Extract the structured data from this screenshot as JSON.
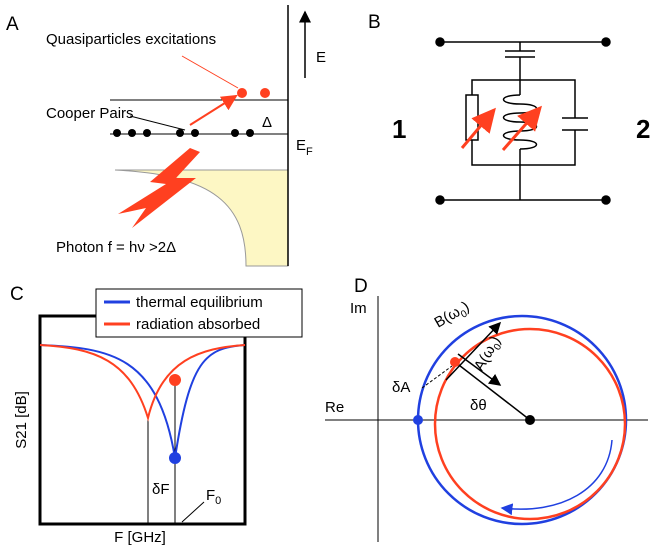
{
  "panel_a": {
    "label": "A",
    "quasiparticles": "Quasiparticles excitations",
    "energy_axis": "E",
    "cooper_pairs": "Cooper Pairs",
    "gap": "Δ",
    "fermi_main": "E",
    "fermi_sub": "F",
    "photon": "Photon f = hν >2Δ"
  },
  "panel_b": {
    "label": "B",
    "port_1": "1",
    "port_2": "2"
  },
  "panel_c": {
    "label": "C",
    "legend": [
      "thermal equilibrium",
      "radiation absorbed"
    ],
    "y_axis": "S21 [dB]",
    "x_axis": "F [GHz]",
    "delta_f": "δF",
    "f0_main": "F",
    "f0_sub": "0"
  },
  "panel_d": {
    "label": "D",
    "im": "Im",
    "re": "Re",
    "b_main": "B(ω",
    "b_sub": "0",
    "b_end": ")",
    "a_main": "A(ω",
    "a_sub": "0",
    "a_end": ")",
    "delta_a": "δA",
    "delta_theta": "δθ"
  }
}
